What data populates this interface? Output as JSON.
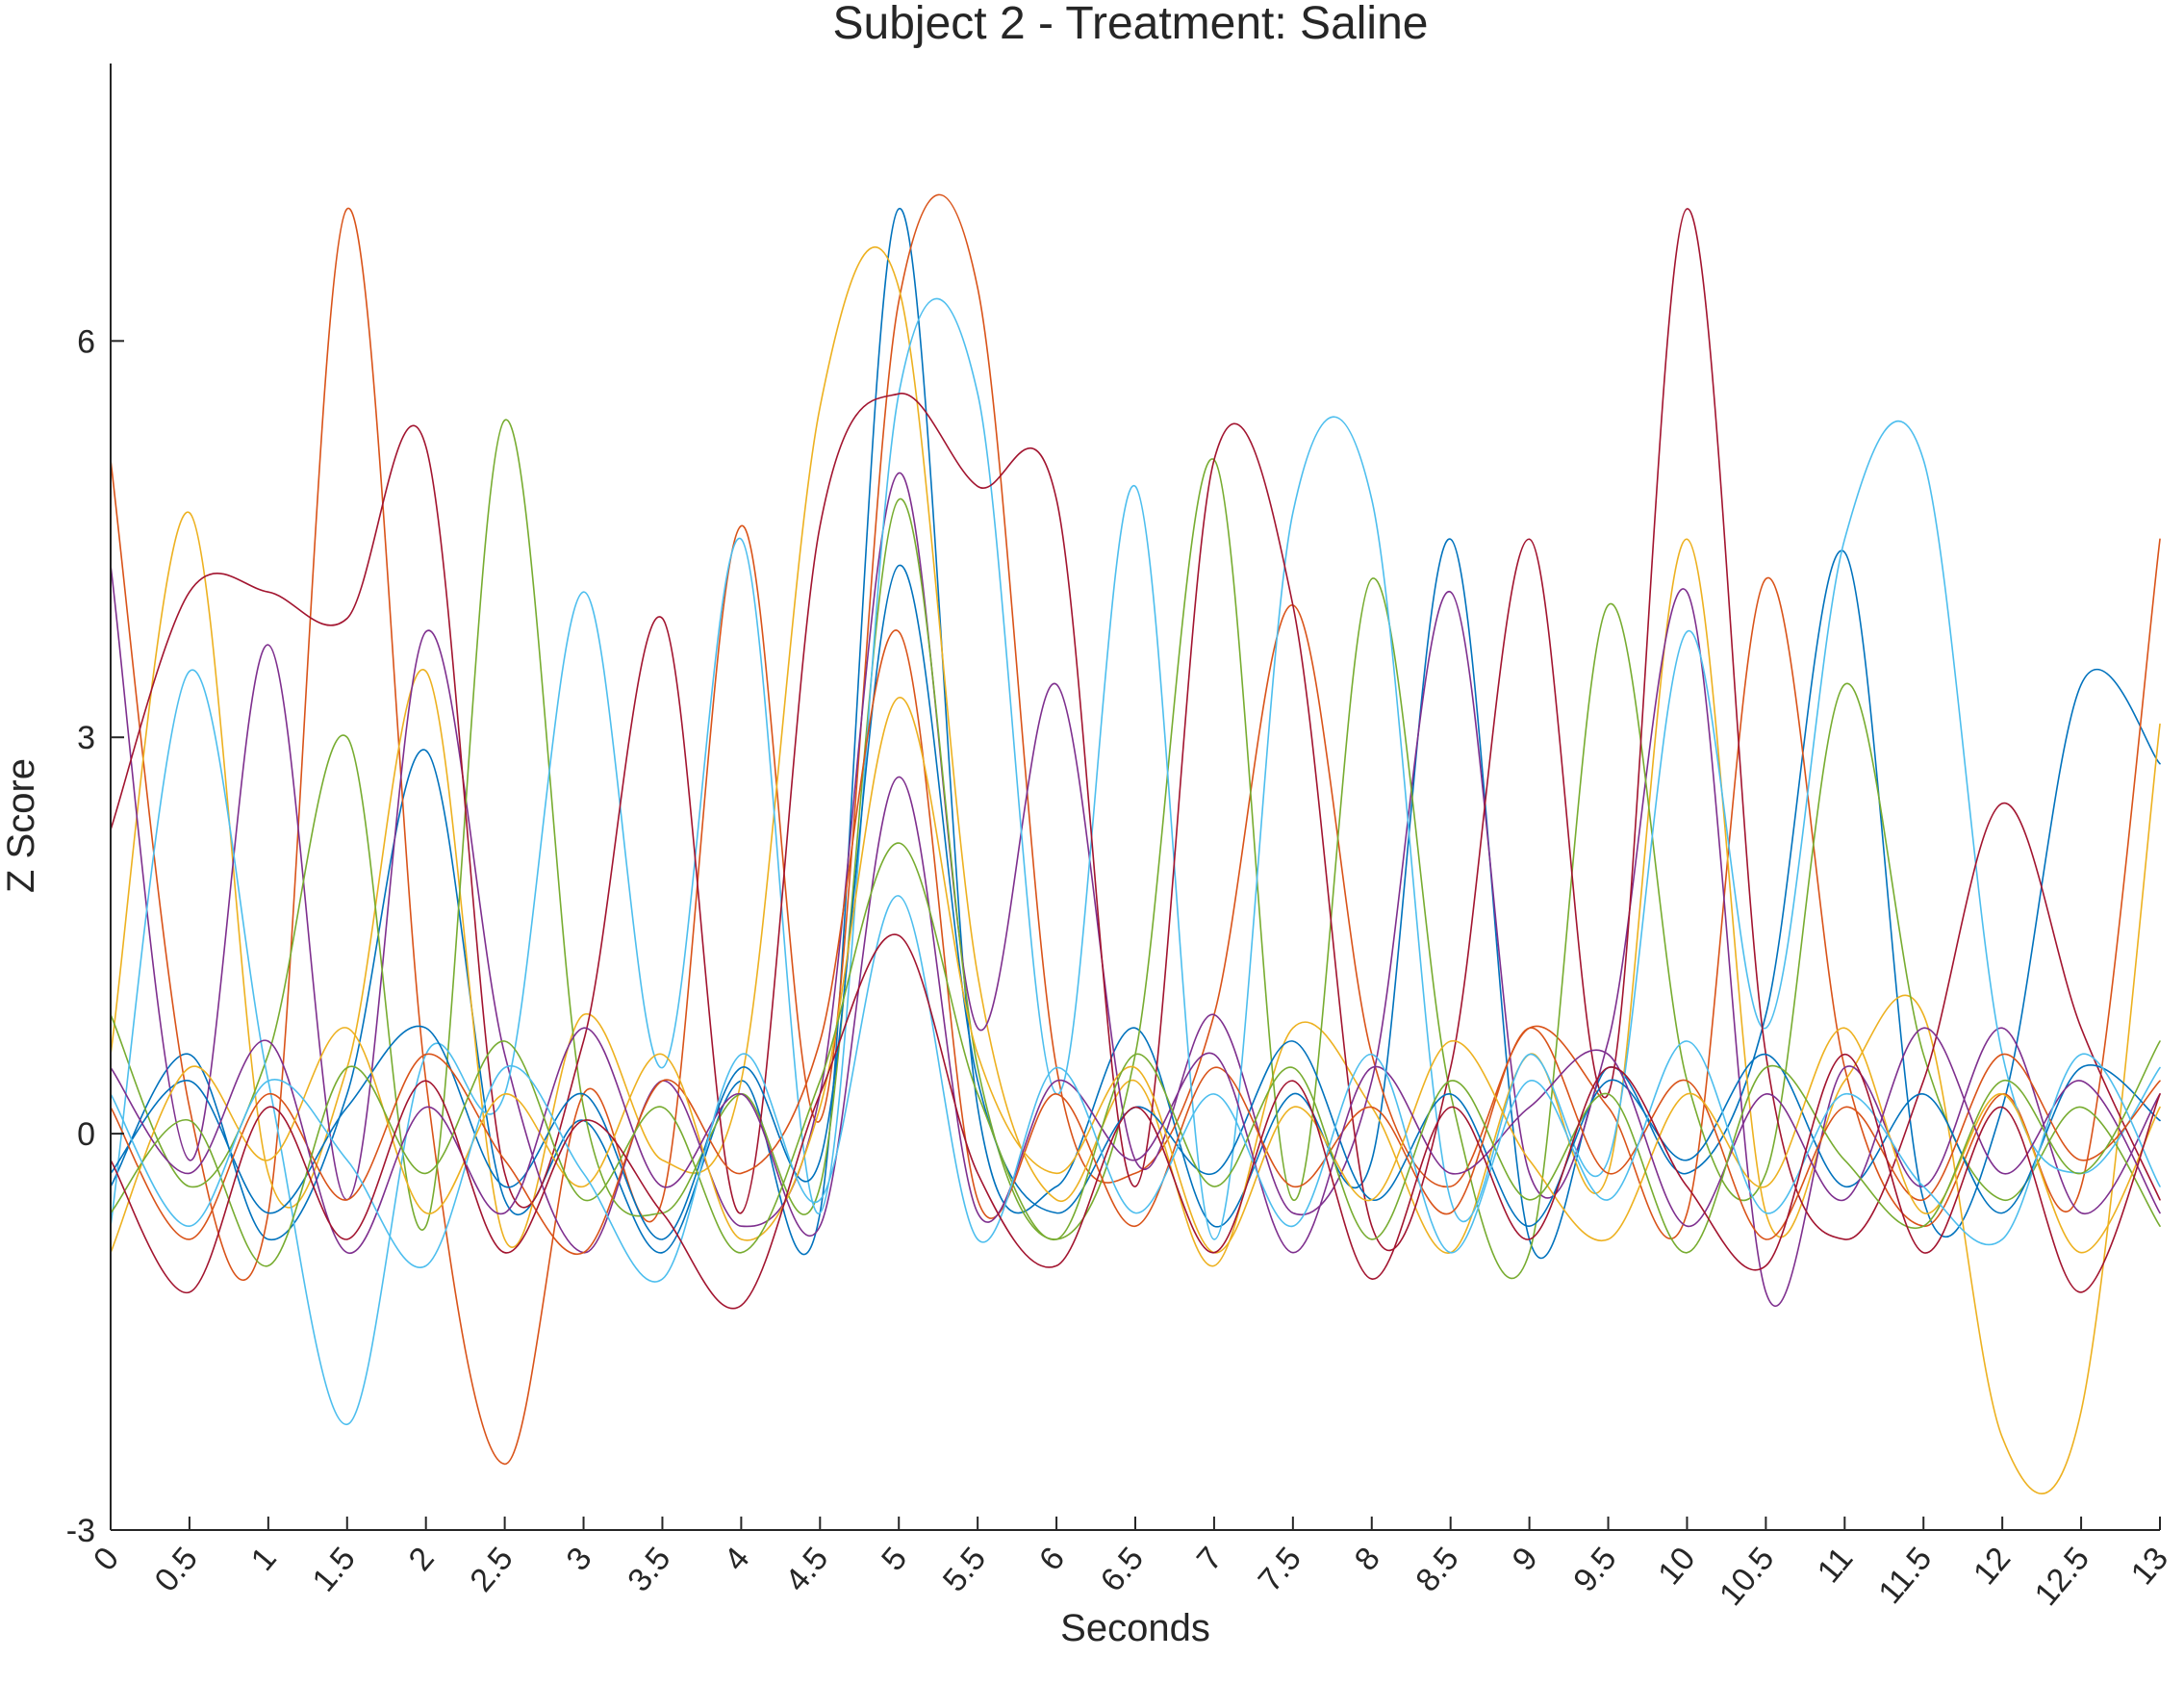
{
  "chart_data": {
    "type": "line",
    "title": "Subject 2 - Treatment: Saline",
    "xlabel": "Seconds",
    "ylabel": "Z Score",
    "xlim": [
      0,
      13
    ],
    "ylim": [
      -3,
      8.1
    ],
    "x_ticks": [
      "0",
      "0.5",
      "1",
      "1.5",
      "2",
      "2.5",
      "3",
      "3.5",
      "4",
      "4.5",
      "5",
      "5.5",
      "6",
      "6.5",
      "7",
      "7.5",
      "8",
      "8.5",
      "9",
      "9.5",
      "10",
      "10.5",
      "11",
      "11.5",
      "12",
      "12.5",
      "13"
    ],
    "y_ticks": [
      "-3",
      "0",
      "3",
      "6"
    ],
    "grid": false,
    "legend": "none",
    "colors": [
      "#0072BD",
      "#D95319",
      "#EDB120",
      "#7E2F8E",
      "#77AC30",
      "#4DBEEE",
      "#A2142F"
    ],
    "x": [
      0,
      0.5,
      1,
      1.5,
      2,
      2.5,
      3,
      3.5,
      4,
      4.5,
      5,
      5.5,
      6,
      6.5,
      7,
      7.5,
      8,
      8.5,
      9,
      9.5,
      10,
      10.5,
      11,
      11.5,
      12,
      12.5,
      13
    ],
    "series": [
      {
        "values": [
          -0.4,
          0.6,
          -0.8,
          0.3,
          2.9,
          -0.5,
          0.1,
          -0.9,
          0.4,
          -0.6,
          7.0,
          0.2,
          -0.4,
          0.8,
          -0.7,
          0.3,
          -0.2,
          4.5,
          -0.8,
          0.5,
          -0.3,
          0.9,
          4.4,
          -0.5,
          0.2,
          3.4,
          2.8
        ]
      },
      {
        "values": [
          5.1,
          0.2,
          -0.6,
          7.0,
          0.4,
          -2.5,
          0.3,
          -0.5,
          4.6,
          0.1,
          6.3,
          6.4,
          0.5,
          -0.3,
          0.9,
          4.0,
          0.6,
          -0.4,
          0.8,
          0.2,
          -0.6,
          4.2,
          0.5,
          -0.7,
          0.3,
          -0.4,
          4.5
        ]
      },
      {
        "values": [
          0.6,
          4.7,
          -0.3,
          0.5,
          3.5,
          -0.8,
          0.9,
          -0.2,
          0.4,
          5.5,
          6.4,
          1.2,
          -0.5,
          0.4,
          -1.0,
          0.8,
          0.2,
          -0.9,
          0.6,
          -0.3,
          4.5,
          -0.6,
          0.4,
          0.9,
          -2.3,
          -2.1,
          3.1
        ]
      },
      {
        "values": [
          4.3,
          -0.2,
          3.7,
          -0.5,
          3.8,
          0.6,
          -0.9,
          0.4,
          -0.7,
          0.3,
          5.0,
          0.8,
          3.4,
          -0.2,
          0.9,
          -0.6,
          0.4,
          4.1,
          -0.3,
          0.7,
          4.1,
          -1.2,
          0.5,
          -0.4,
          0.8,
          -0.6,
          0.3
        ]
      },
      {
        "values": [
          0.9,
          -0.4,
          0.6,
          3.0,
          -0.7,
          5.4,
          0.2,
          -0.6,
          0.3,
          -0.4,
          4.8,
          0.5,
          -0.8,
          0.6,
          5.1,
          -0.5,
          4.2,
          0.3,
          -0.9,
          4.0,
          0.4,
          -0.3,
          3.4,
          0.6,
          -0.5,
          0.2,
          -0.7
        ]
      },
      {
        "values": [
          -0.7,
          3.5,
          0.4,
          -2.2,
          0.6,
          0.3,
          4.1,
          0.5,
          4.5,
          -0.6,
          5.6,
          5.6,
          0.3,
          4.9,
          -0.8,
          4.7,
          4.8,
          -0.5,
          0.6,
          -0.2,
          3.8,
          0.8,
          4.5,
          5.1,
          0.6,
          -0.3,
          0.5
        ]
      },
      {
        "values": [
          2.3,
          4.1,
          4.1,
          3.9,
          5.2,
          -0.3,
          0.7,
          3.9,
          -0.6,
          4.6,
          5.6,
          4.9,
          4.8,
          -0.4,
          5.1,
          4.0,
          -0.7,
          0.5,
          4.5,
          0.3,
          7.0,
          0.6,
          -0.8,
          0.4,
          2.5,
          0.8,
          -0.5
        ]
      },
      {
        "values": [
          -0.3,
          0.4,
          -0.6,
          0.2,
          0.8,
          -0.4,
          0.3,
          -0.8,
          0.5,
          -0.2,
          4.3,
          0.4,
          -0.6,
          0.2,
          -0.3,
          0.7,
          -0.5,
          0.3,
          -0.7,
          0.4,
          -0.2,
          0.6,
          -0.4,
          0.3,
          -0.6,
          0.5,
          0.1
        ]
      },
      {
        "values": [
          0.2,
          -0.8,
          0.3,
          -0.5,
          0.6,
          -0.2,
          -0.9,
          0.4,
          -0.3,
          0.7,
          3.8,
          -0.5,
          0.3,
          -0.7,
          0.5,
          -0.4,
          0.2,
          -0.6,
          0.8,
          -0.3,
          0.4,
          -0.8,
          0.2,
          -0.5,
          0.6,
          -0.2,
          0.4
        ]
      },
      {
        "values": [
          -0.9,
          0.5,
          -0.2,
          0.8,
          -0.6,
          0.3,
          -0.4,
          0.6,
          -0.8,
          0.2,
          3.3,
          0.6,
          -0.3,
          0.5,
          -0.9,
          0.2,
          -0.5,
          0.7,
          -0.2,
          -0.8,
          0.3,
          -0.4,
          0.8,
          -0.6,
          0.3,
          -0.9,
          0.2
        ]
      },
      {
        "values": [
          0.5,
          -0.3,
          0.7,
          -0.9,
          0.2,
          -0.6,
          0.8,
          -0.4,
          0.3,
          -0.7,
          2.7,
          -0.6,
          0.4,
          -0.2,
          0.6,
          -0.9,
          0.5,
          -0.3,
          0.2,
          0.6,
          -0.7,
          0.3,
          -0.5,
          0.8,
          -0.3,
          0.4,
          -0.6
        ]
      },
      {
        "values": [
          -0.6,
          0.1,
          -1.0,
          0.5,
          -0.3,
          0.7,
          -0.5,
          0.2,
          -0.9,
          0.4,
          2.2,
          0.3,
          -0.8,
          0.6,
          -0.4,
          0.5,
          -0.8,
          0.4,
          -0.5,
          0.3,
          -0.9,
          0.5,
          -0.2,
          -0.7,
          0.4,
          -0.3,
          0.7
        ]
      },
      {
        "values": [
          0.3,
          -0.7,
          0.4,
          -0.2,
          -1.0,
          0.5,
          -0.3,
          -1.1,
          0.6,
          -0.5,
          1.8,
          -0.8,
          0.5,
          -0.6,
          0.3,
          -0.7,
          0.6,
          -0.9,
          0.4,
          -0.5,
          0.7,
          -0.6,
          0.3,
          -0.4,
          -0.8,
          0.6,
          -0.4
        ]
      },
      {
        "values": [
          -0.2,
          -1.2,
          0.2,
          -0.8,
          0.4,
          -0.9,
          0.1,
          -0.6,
          -1.3,
          0.3,
          1.5,
          -0.3,
          -1.0,
          0.2,
          -0.9,
          0.4,
          -1.1,
          0.2,
          -0.8,
          0.5,
          -0.4,
          -1.0,
          0.6,
          -0.9,
          0.2,
          -1.2,
          0.3
        ]
      }
    ]
  }
}
